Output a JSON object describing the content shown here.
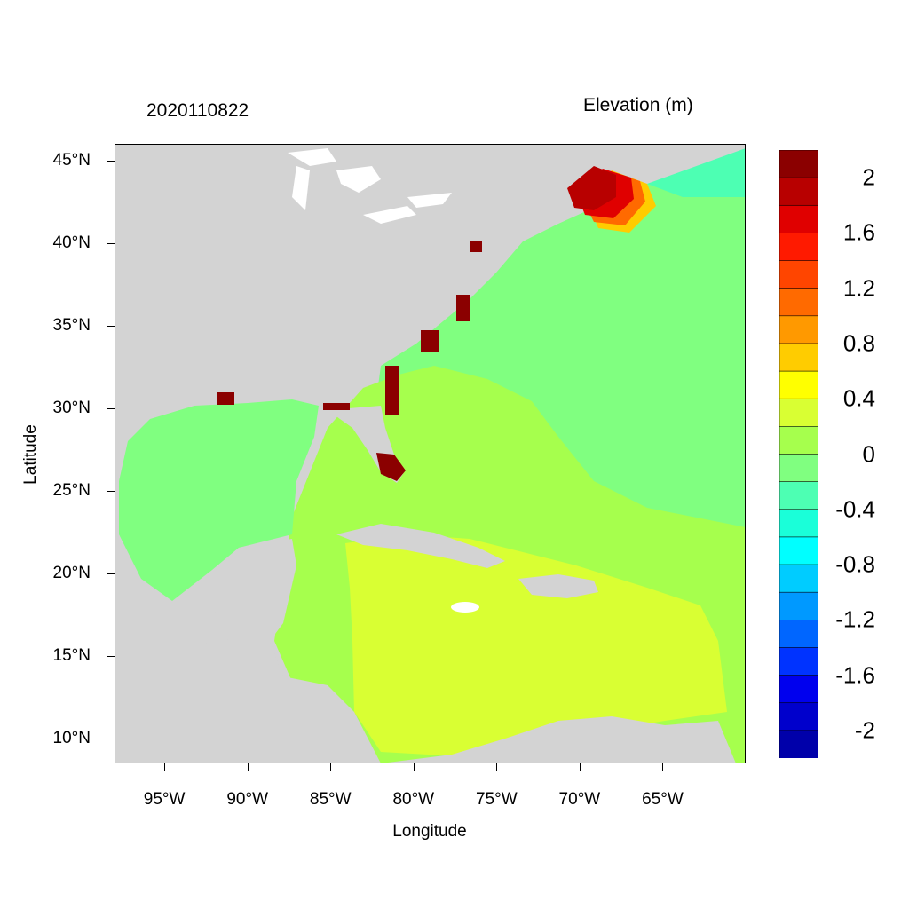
{
  "header": {
    "left_title": "2020110822",
    "right_title": "Elevation (m)"
  },
  "axes": {
    "xlabel": "Longitude",
    "ylabel": "Latitude",
    "x_ticks": [
      "95°W",
      "90°W",
      "85°W",
      "80°W",
      "75°W",
      "70°W",
      "65°W"
    ],
    "y_ticks": [
      "45°N",
      "40°N",
      "35°N",
      "30°N",
      "25°N",
      "20°N",
      "15°N",
      "10°N"
    ],
    "lon_range": [
      -98,
      -60
    ],
    "lat_range": [
      8.5,
      46
    ]
  },
  "colorbar": {
    "labels": [
      "2",
      "1.6",
      "1.2",
      "0.8",
      "0.4",
      "0",
      "-0.4",
      "-0.8",
      "-1.2",
      "-1.6",
      "-2"
    ],
    "colors": [
      "#8b0000",
      "#b80000",
      "#e00000",
      "#ff1a00",
      "#ff4500",
      "#ff6a00",
      "#ff9900",
      "#ffcc00",
      "#ffff00",
      "#d9ff33",
      "#a6ff4d",
      "#80ff80",
      "#4dffb3",
      "#1affd9",
      "#00ffff",
      "#00ccff",
      "#0099ff",
      "#0066ff",
      "#0033ff",
      "#0000ee",
      "#0000cc",
      "#0000aa"
    ]
  },
  "map_colors": {
    "land": "#d3d3d3",
    "lakes": "#ffffff",
    "atlantic": "#80ff80",
    "near_zero_pos": "#a6ff4d",
    "caribbean": "#d9ff33",
    "surge_high": "#8b0000"
  }
}
